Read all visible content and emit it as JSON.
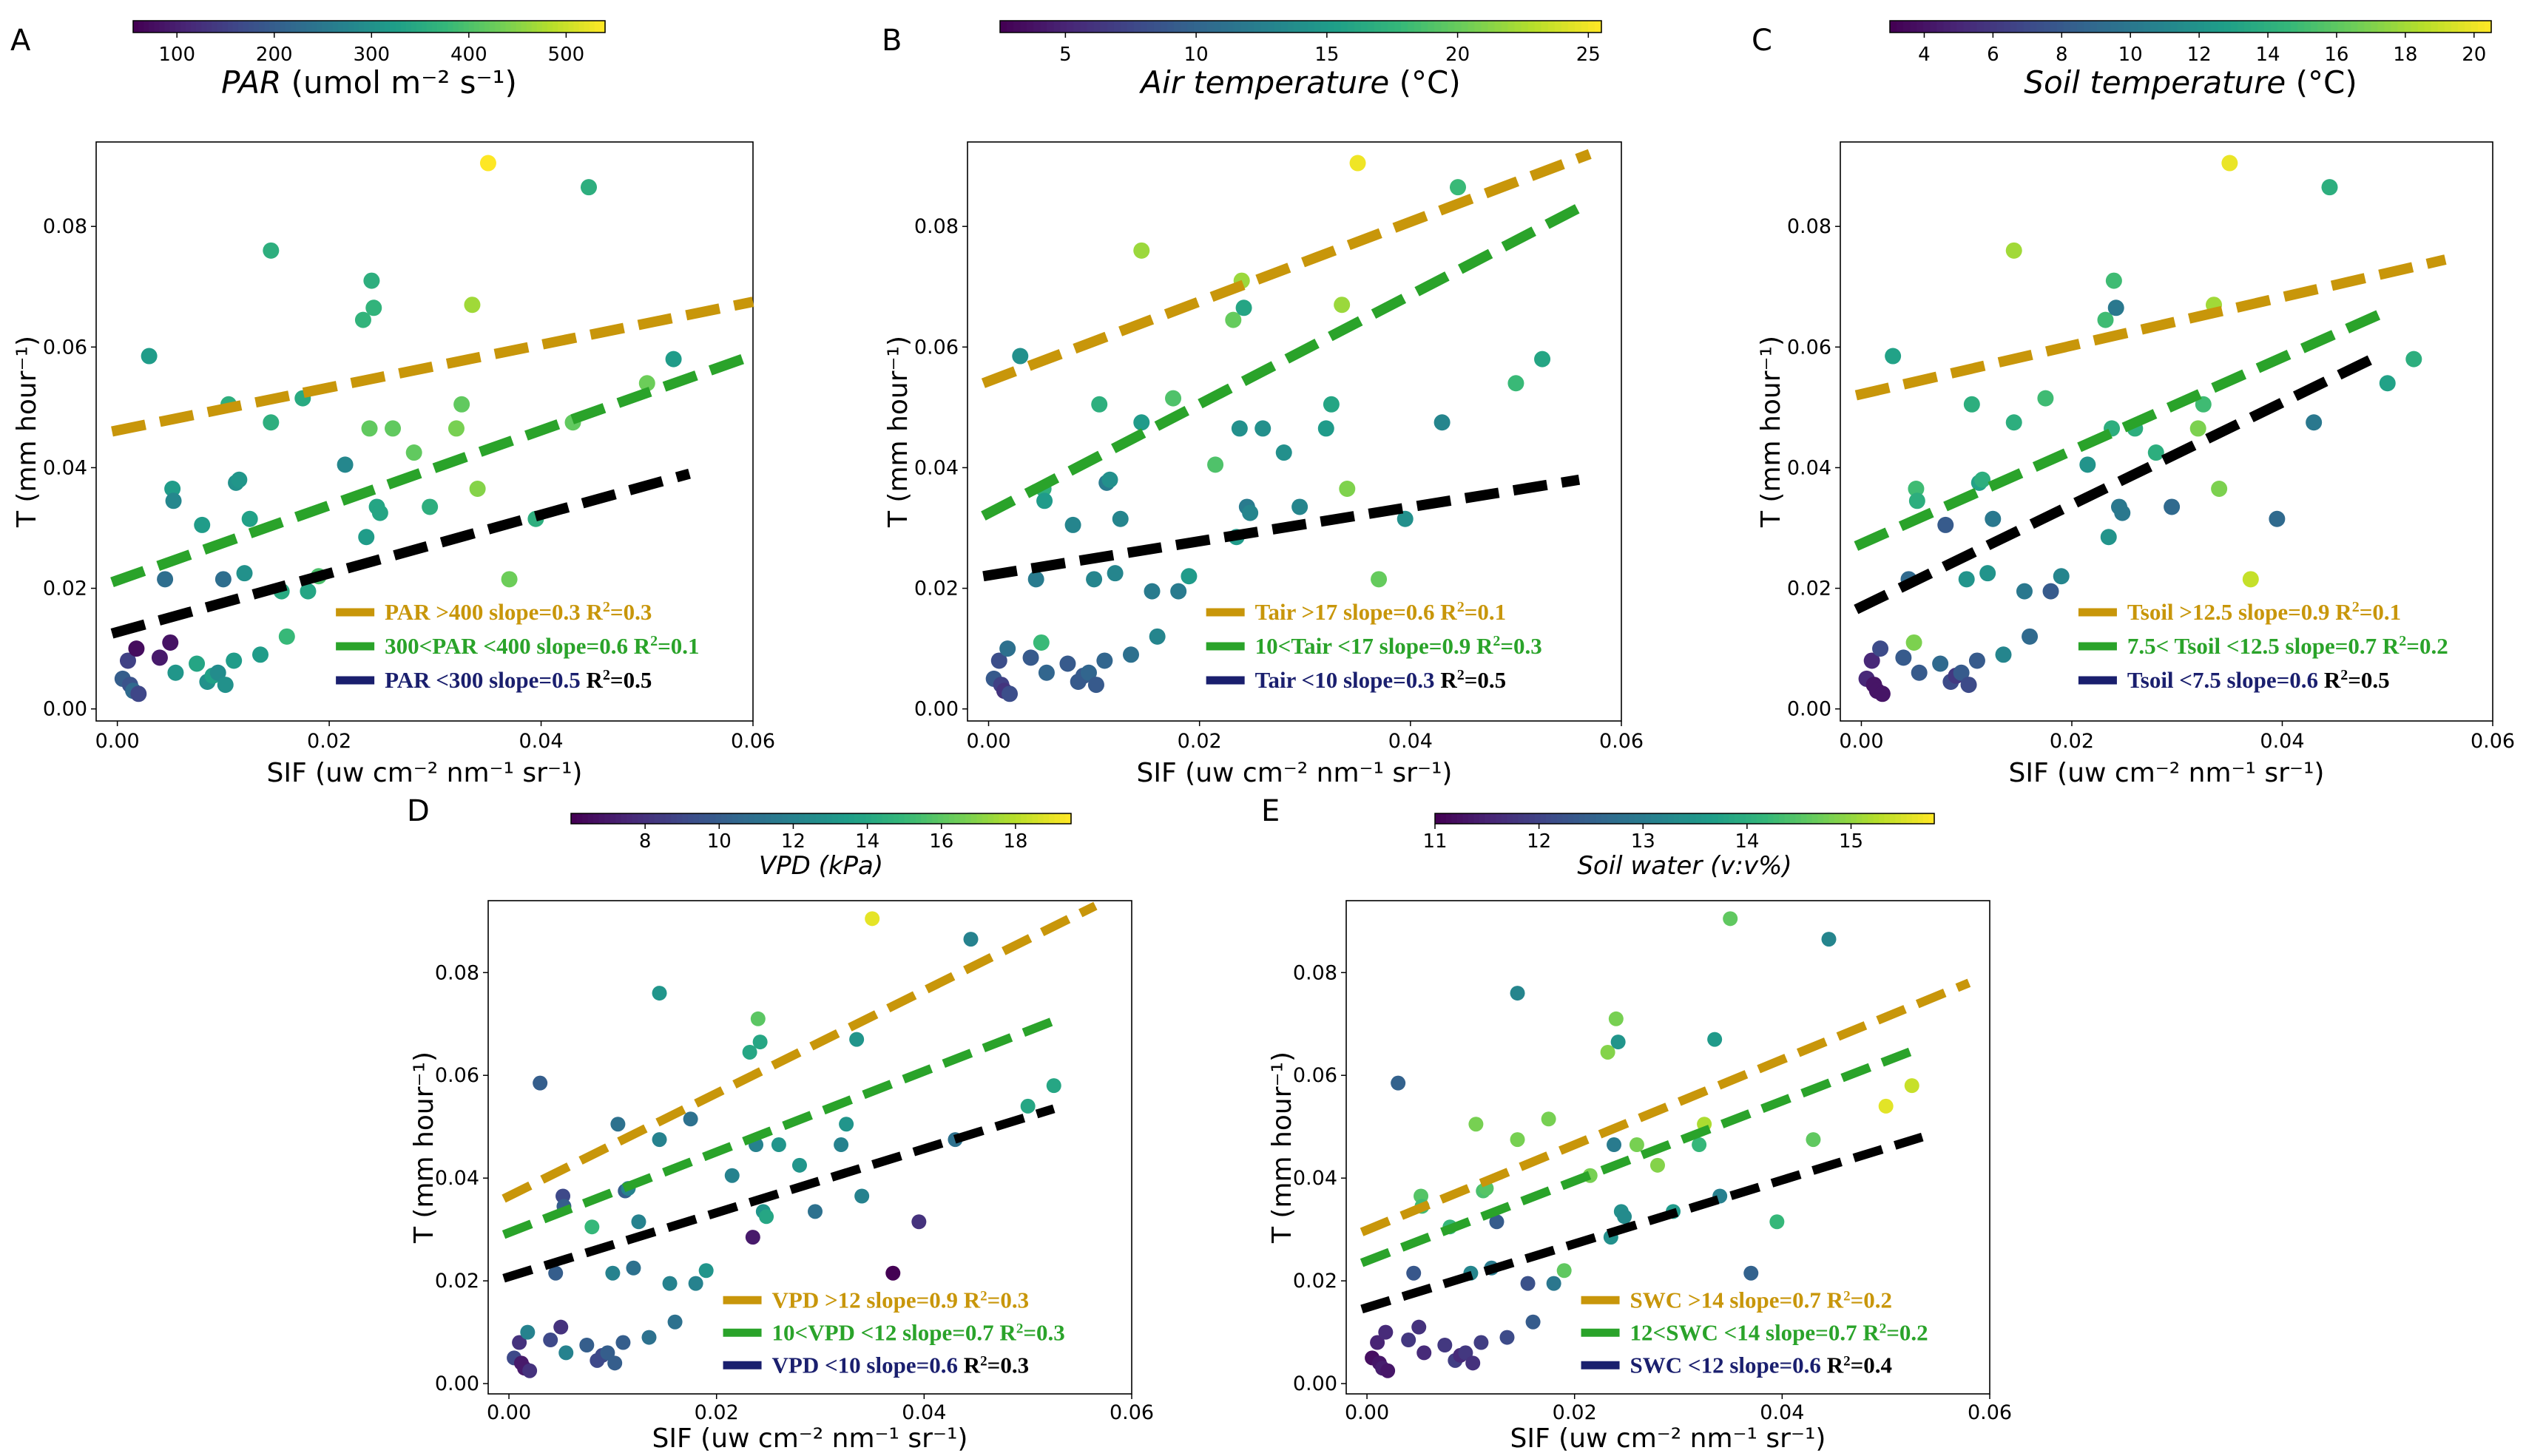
{
  "figure": {
    "palette": [
      "#440154",
      "#482777",
      "#3e4989",
      "#31688e",
      "#26828e",
      "#1f9e89",
      "#35b779",
      "#6ece58",
      "#b5de2b",
      "#fde725"
    ],
    "colors": {
      "high": "#c8960a",
      "mid": "#2aa32a",
      "low": "#000000",
      "low_text": "#1a1f6e",
      "r2_black": "#000000"
    },
    "shared_points": [
      [
        0.0005,
        0.005
      ],
      [
        0.001,
        0.008
      ],
      [
        0.0012,
        0.004
      ],
      [
        0.0015,
        0.003
      ],
      [
        0.002,
        0.0025
      ],
      [
        0.0018,
        0.01
      ],
      [
        0.003,
        0.0585
      ],
      [
        0.004,
        0.0085
      ],
      [
        0.0045,
        0.0215
      ],
      [
        0.005,
        0.011
      ],
      [
        0.0052,
        0.0365
      ],
      [
        0.0053,
        0.0345
      ],
      [
        0.0055,
        0.006
      ],
      [
        0.0075,
        0.0075
      ],
      [
        0.008,
        0.0305
      ],
      [
        0.0085,
        0.0045
      ],
      [
        0.009,
        0.0055
      ],
      [
        0.0095,
        0.006
      ],
      [
        0.01,
        0.0215
      ],
      [
        0.0102,
        0.004
      ],
      [
        0.0105,
        0.0505
      ],
      [
        0.011,
        0.008
      ],
      [
        0.0112,
        0.0375
      ],
      [
        0.0115,
        0.038
      ],
      [
        0.012,
        0.0225
      ],
      [
        0.0125,
        0.0315
      ],
      [
        0.0135,
        0.009
      ],
      [
        0.0145,
        0.076
      ],
      [
        0.0145,
        0.0475
      ],
      [
        0.0155,
        0.0195
      ],
      [
        0.016,
        0.012
      ],
      [
        0.0175,
        0.0515
      ],
      [
        0.018,
        0.0195
      ],
      [
        0.019,
        0.022
      ],
      [
        0.0215,
        0.0405
      ],
      [
        0.0232,
        0.0645
      ],
      [
        0.0235,
        0.0285
      ],
      [
        0.024,
        0.071
      ],
      [
        0.0242,
        0.0665
      ],
      [
        0.0238,
        0.0465
      ],
      [
        0.0245,
        0.0335
      ],
      [
        0.0248,
        0.0325
      ],
      [
        0.026,
        0.0465
      ],
      [
        0.028,
        0.0425
      ],
      [
        0.0295,
        0.0335
      ],
      [
        0.032,
        0.0465
      ],
      [
        0.0325,
        0.0505
      ],
      [
        0.0335,
        0.067
      ],
      [
        0.034,
        0.0365
      ],
      [
        0.035,
        0.0905
      ],
      [
        0.037,
        0.0215
      ],
      [
        0.0395,
        0.0315
      ],
      [
        0.043,
        0.0475
      ],
      [
        0.0445,
        0.0865
      ],
      [
        0.05,
        0.054
      ],
      [
        0.0525,
        0.058
      ]
    ]
  },
  "panels": [
    {
      "letter": "A",
      "colorbar": {
        "label": "PAR (umol m⁻² s⁻¹)",
        "label_italic_part": "PAR",
        "min": 55,
        "max": 540,
        "ticks": [
          "100",
          "200",
          "300",
          "400",
          "500"
        ],
        "tick_values": [
          100,
          200,
          300,
          400,
          500
        ]
      },
      "chart_data": {
        "type": "scatter",
        "xlabel": "SIF (uw cm⁻² nm⁻¹ sr⁻¹)",
        "ylabel": "T (mm hour⁻¹)",
        "xlim": [
          -0.002,
          0.06
        ],
        "ylim": [
          -0.002,
          0.094
        ],
        "xticks": [
          "0.00",
          "0.02",
          "0.04",
          "0.06"
        ],
        "xtick_values": [
          0,
          0.02,
          0.04,
          0.06
        ],
        "yticks": [
          "0.00",
          "0.02",
          "0.04",
          "0.06",
          "0.08"
        ],
        "ytick_values": [
          0,
          0.02,
          0.04,
          0.06,
          0.08
        ],
        "point_color_values": [
          200,
          150,
          180,
          220,
          160,
          70,
          320,
          90,
          230,
          80,
          320,
          280,
          310,
          340,
          320,
          300,
          330,
          290,
          230,
          300,
          360,
          320,
          300,
          310,
          300,
          330,
          320,
          360,
          360,
          350,
          380,
          350,
          340,
          400,
          280,
          370,
          320,
          360,
          370,
          420,
          340,
          340,
          420,
          420,
          360,
          440,
          420,
          470,
          450,
          540,
          430,
          360,
          420,
          360,
          430,
          320
        ],
        "lines": [
          {
            "legend": "PAR >400 slope=0.3 R²=0.3",
            "text": "PAR >400 slope=0.3 R",
            "sup": "2",
            "tail": "=0.3",
            "color": "high",
            "tail_color": "high",
            "x": [
              -0.0005,
              0.06
            ],
            "y": [
              0.046,
              0.0675
            ]
          },
          {
            "legend": "300<PAR <400 slope=0.6 R²=0.1",
            "text": "300<PAR <400 slope=0.6 R",
            "sup": "2",
            "tail": "=0.1",
            "color": "mid",
            "tail_color": "mid",
            "x": [
              -0.0005,
              0.059
            ],
            "y": [
              0.021,
              0.058
            ]
          },
          {
            "legend": "PAR <300 slope=0.5 R²=0.5",
            "text": "PAR <300 slope=0.5 ",
            "sup": "2",
            "tail": "=0.5",
            "prefix_R": "R",
            "color": "low",
            "legend_color": "low_text",
            "tail_color": "r2_black",
            "x": [
              -0.0005,
              0.054
            ],
            "y": [
              0.0125,
              0.039
            ]
          }
        ]
      }
    },
    {
      "letter": "B",
      "colorbar": {
        "label": "Air temperature (°C)",
        "label_italic_part": "Air temperature",
        "min": 2.5,
        "max": 25.5,
        "ticks": [
          "5",
          "10",
          "15",
          "20",
          "25"
        ],
        "tick_values": [
          5,
          10,
          15,
          20,
          25
        ]
      },
      "chart_data": {
        "type": "scatter",
        "xlabel": "SIF (uw cm⁻² nm⁻¹ sr⁻¹)",
        "ylabel": "T (mm hour⁻¹)",
        "xlim": [
          -0.002,
          0.06
        ],
        "ylim": [
          -0.002,
          0.094
        ],
        "xticks": [
          "0.00",
          "0.02",
          "0.04",
          "0.06"
        ],
        "xtick_values": [
          0,
          0.02,
          0.04,
          0.06
        ],
        "yticks": [
          "0.00",
          "0.02",
          "0.04",
          "0.06",
          "0.08"
        ],
        "ytick_values": [
          0,
          0.02,
          0.04,
          0.06,
          0.08
        ],
        "point_color_values": [
          9,
          8,
          7,
          6,
          8,
          11,
          14,
          9,
          12,
          18,
          17,
          15,
          10,
          9,
          13,
          9,
          9,
          10,
          13,
          9,
          17,
          10,
          12,
          14,
          13,
          13,
          11,
          22,
          15,
          12,
          13,
          19,
          12,
          15,
          19,
          20,
          15,
          22,
          16,
          14,
          12,
          13,
          14,
          14,
          13,
          15,
          16,
          22,
          21,
          25,
          20,
          14,
          13,
          18,
          18,
          16
        ],
        "lines": [
          {
            "legend": "Tair >17 slope=0.6 R²=0.1",
            "text": "Tair >17 slope=0.6 R",
            "sup": "2",
            "tail": "=0.1",
            "color": "high",
            "tail_color": "high",
            "x": [
              -0.0005,
              0.057
            ],
            "y": [
              0.054,
              0.092
            ]
          },
          {
            "legend": "10<Tair <17 slope=0.9 R²=0.3",
            "text": "10<Tair <17 slope=0.9 R",
            "sup": "2",
            "tail": "=0.3",
            "color": "mid",
            "tail_color": "mid",
            "x": [
              -0.0005,
              0.057
            ],
            "y": [
              0.032,
              0.084
            ]
          },
          {
            "legend": "Tair <10 slope=0.3 R²=0.5",
            "text": "Tair <10 slope=0.3 ",
            "sup": "2",
            "tail": "=0.5",
            "prefix_R": "R",
            "color": "low",
            "legend_color": "low_text",
            "tail_color": "r2_black",
            "x": [
              -0.0005,
              0.056
            ],
            "y": [
              0.022,
              0.038
            ]
          }
        ]
      }
    },
    {
      "letter": "C",
      "colorbar": {
        "label": "Soil temperature (°C)",
        "label_italic_part": "Soil temperature",
        "min": 3,
        "max": 20.5,
        "ticks": [
          "4",
          "6",
          "8",
          "10",
          "12",
          "14",
          "16",
          "18",
          "20"
        ],
        "tick_values": [
          4,
          6,
          8,
          10,
          12,
          14,
          16,
          18,
          20
        ]
      },
      "chart_data": {
        "type": "scatter",
        "xlabel": "SIF (uw cm⁻² nm⁻¹ sr⁻¹)",
        "ylabel": "T (mm hour⁻¹)",
        "xlim": [
          -0.002,
          0.06
        ],
        "ylim": [
          -0.002,
          0.094
        ],
        "xticks": [
          "0.00",
          "0.02",
          "0.04",
          "0.06"
        ],
        "xtick_values": [
          0,
          0.02,
          0.04,
          0.06
        ],
        "yticks": [
          "0.00",
          "0.02",
          "0.04",
          "0.06",
          "0.08"
        ],
        "ytick_values": [
          0,
          0.02,
          0.04,
          0.06,
          0.08
        ],
        "point_color_values": [
          5,
          5,
          4,
          4,
          4,
          7,
          13,
          8,
          9,
          17,
          15,
          14,
          8,
          9,
          8,
          7,
          6,
          8,
          12,
          7,
          14,
          8,
          13,
          14,
          12,
          10,
          11,
          18,
          14,
          10,
          9,
          15,
          8,
          11,
          12,
          15,
          12,
          15,
          10,
          14,
          10,
          10,
          14,
          14,
          9,
          17,
          15,
          18,
          17,
          20,
          19,
          9,
          10,
          14,
          13,
          14
        ],
        "lines": [
          {
            "legend": "Tsoil >12.5 slope=0.9 R²=0.1",
            "text": "Tsoil >12.5 slope=0.9 R",
            "sup": "2",
            "tail": "=0.1",
            "color": "high",
            "tail_color": "high",
            "x": [
              -0.0005,
              0.0555
            ],
            "y": [
              0.052,
              0.0745
            ]
          },
          {
            "legend": "7.5< Tsoil <12.5 slope=0.7 R²=0.2",
            "text": "7.5< Tsoil <12.5 slope=0.7 R",
            "sup": "2",
            "tail": "=0.2",
            "color": "mid",
            "tail_color": "mid",
            "x": [
              -0.0005,
              0.05
            ],
            "y": [
              0.027,
              0.066
            ]
          },
          {
            "legend": "Tsoil <7.5 slope=0.6 R²=0.5",
            "text": "Tsoil <7.5 slope=0.6 ",
            "sup": "2",
            "tail": "=0.5",
            "prefix_R": "R",
            "color": "low",
            "legend_color": "low_text",
            "tail_color": "r2_black",
            "x": [
              -0.0005,
              0.0485
            ],
            "y": [
              0.0165,
              0.058
            ]
          }
        ]
      }
    },
    {
      "letter": "D",
      "colorbar": {
        "label": "VPD (kPa)",
        "label_italic_part": "VPD (kPa)",
        "min": 6,
        "max": 19.5,
        "ticks": [
          "8",
          "10",
          "12",
          "14",
          "16",
          "18"
        ],
        "tick_values": [
          8,
          10,
          12,
          14,
          16,
          18
        ]
      },
      "chart_data": {
        "type": "scatter",
        "xlabel": "SIF (uw cm⁻² nm⁻¹ sr⁻¹)",
        "ylabel": "T (mm hour⁻¹)",
        "xlim": [
          -0.002,
          0.06
        ],
        "ylim": [
          -0.002,
          0.094
        ],
        "xticks": [
          "0.00",
          "0.02",
          "0.04",
          "0.06"
        ],
        "xtick_values": [
          0,
          0.02,
          0.04,
          0.06
        ],
        "yticks": [
          "0.00",
          "0.02",
          "0.04",
          "0.06",
          "0.08"
        ],
        "ytick_values": [
          0,
          0.02,
          0.04,
          0.06,
          0.08
        ],
        "point_color_values": [
          9,
          8,
          7,
          7,
          8,
          12,
          10,
          9,
          10,
          8,
          9,
          10,
          12,
          10,
          15,
          9,
          9,
          10,
          12,
          10,
          11,
          10,
          10,
          12,
          11,
          12,
          11,
          13,
          12,
          12,
          11,
          11,
          12,
          13,
          12,
          14,
          7,
          16,
          14,
          12,
          13,
          14,
          13,
          13,
          11,
          12,
          13,
          13,
          12,
          19,
          6,
          8,
          11,
          12,
          14,
          14
        ],
        "lines": [
          {
            "legend": "VPD >12 slope=0.9 R²=0.3",
            "text": "VPD >12 slope=0.9 R",
            "sup": "2",
            "tail": "=0.3",
            "color": "high",
            "tail_color": "high",
            "x": [
              -0.0005,
              0.0565
            ],
            "y": [
              0.036,
              0.093
            ]
          },
          {
            "legend": "10<VPD <12 slope=0.7 R²=0.3",
            "text": "10<VPD <12 slope=0.7 R",
            "sup": "2",
            "tail": "=0.3",
            "color": "mid",
            "tail_color": "mid",
            "x": [
              -0.0005,
              0.053
            ],
            "y": [
              0.029,
              0.071
            ]
          },
          {
            "legend": "VPD <10 slope=0.6 R²=0.3",
            "text": "VPD <10 slope=0.6 ",
            "sup": "2",
            "tail": "=0.3",
            "prefix_R": "R",
            "color": "low",
            "legend_color": "low_text",
            "tail_color": "r2_black",
            "x": [
              -0.0005,
              0.0525
            ],
            "y": [
              0.0205,
              0.0535
            ]
          }
        ]
      }
    },
    {
      "letter": "E",
      "colorbar": {
        "label": "Soil water (v:v%)",
        "label_italic_part": "Soil water (v:v%)",
        "min": 11,
        "max": 15.8,
        "ticks": [
          "11",
          "12",
          "13",
          "14",
          "15"
        ],
        "tick_values": [
          11,
          12,
          13,
          14,
          15
        ]
      },
      "chart_data": {
        "type": "scatter",
        "xlabel": "SIF (uw cm⁻² nm⁻¹ sr⁻¹)",
        "ylabel": "T (mm hour⁻¹)",
        "xlim": [
          -0.002,
          0.06
        ],
        "ylim": [
          -0.002,
          0.094
        ],
        "xticks": [
          "0.00",
          "0.02",
          "0.04",
          "0.06"
        ],
        "xtick_values": [
          0,
          0.02,
          0.04,
          0.06
        ],
        "yticks": [
          "0.00",
          "0.02",
          "0.04",
          "0.06",
          "0.08"
        ],
        "ytick_values": [
          0,
          0.02,
          0.04,
          0.06,
          0.08
        ],
        "point_color_values": [
          11.2,
          11.5,
          11.3,
          11.4,
          11.3,
          11.6,
          12.5,
          11.8,
          12.3,
          11.7,
          14.5,
          14.3,
          11.6,
          11.8,
          14.2,
          11.9,
          11.6,
          11.8,
          13.2,
          11.7,
          14.8,
          11.9,
          14.4,
          14.5,
          13.0,
          12.4,
          12.1,
          13.2,
          14.8,
          12.2,
          12.4,
          14.8,
          12.9,
          14.6,
          14.8,
          14.9,
          13.4,
          14.8,
          13.5,
          13.0,
          13.4,
          13.3,
          14.8,
          14.9,
          13.6,
          14.2,
          15.2,
          13.6,
          13.1,
          14.6,
          12.5,
          14.2,
          14.6,
          13.2,
          15.6,
          15.4
        ],
        "lines": [
          {
            "legend": "SWC >14 slope=0.7 R²=0.2",
            "text": "SWC >14 slope=0.7 R",
            "sup": "2",
            "tail": "=0.2",
            "color": "high",
            "tail_color": "high",
            "x": [
              -0.0005,
              0.058
            ],
            "y": [
              0.0295,
              0.078
            ]
          },
          {
            "legend": "12<SWC <14 slope=0.7 R²=0.2",
            "text": "12<SWC <14 slope=0.7 R",
            "sup": "2",
            "tail": "=0.2",
            "color": "mid",
            "tail_color": "mid",
            "x": [
              -0.0005,
              0.0535
            ],
            "y": [
              0.0235,
              0.0655
            ]
          },
          {
            "legend": "SWC <12 slope=0.6 R²=0.4",
            "text": "SWC <12 slope=0.6 ",
            "sup": "2",
            "tail": "=0.4",
            "prefix_R": "R",
            "color": "low",
            "legend_color": "low_text",
            "tail_color": "r2_black",
            "x": [
              -0.0005,
              0.0535
            ],
            "y": [
              0.0145,
              0.048
            ]
          }
        ]
      }
    }
  ]
}
